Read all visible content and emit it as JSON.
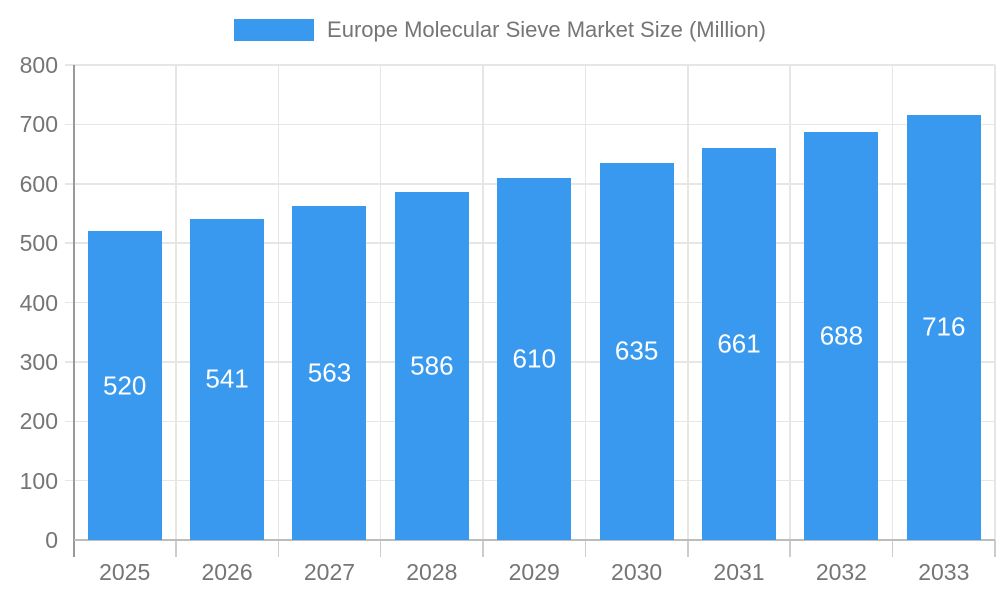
{
  "colors": {
    "bar": "#3899EE",
    "bar_value_text": "#ffffff",
    "axis_text": "#757575",
    "grid": "#e6e6e6",
    "y_axis_line": "#999999",
    "baseline": "#bdbdbd",
    "tick": "#cccccc"
  },
  "legend": {
    "label": "Europe Molecular Sieve Market Size (Million)"
  },
  "chart_data": {
    "type": "bar",
    "title": "Europe Molecular Sieve Market Size (Million)",
    "categories": [
      "2025",
      "2026",
      "2027",
      "2028",
      "2029",
      "2030",
      "2031",
      "2032",
      "2033"
    ],
    "values": [
      520,
      541,
      563,
      586,
      610,
      635,
      661,
      688,
      716
    ],
    "xlabel": "",
    "ylabel": "",
    "ylim": [
      0,
      800
    ],
    "ytick_step": 100,
    "yticks": [
      0,
      100,
      200,
      300,
      400,
      500,
      600,
      700,
      800
    ],
    "grid": true,
    "legend_position": "top",
    "bar_labels_inside": true
  }
}
